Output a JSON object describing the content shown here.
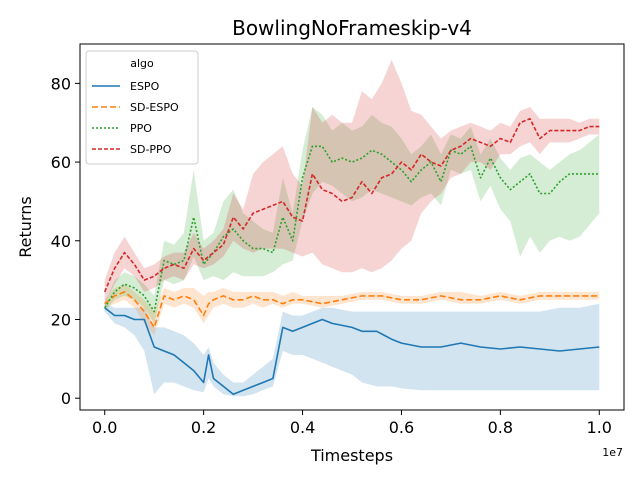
{
  "chart_data": {
    "type": "line",
    "title": "BowlingNoFrameskip-v4",
    "xlabel": "Timesteps",
    "ylabel": "Returns",
    "x_offset_label": "1e7",
    "xlim": [
      -0.05,
      1.05
    ],
    "ylim": [
      -3,
      90
    ],
    "xticks": [
      0.0,
      0.2,
      0.4,
      0.6,
      0.8,
      1.0
    ],
    "xtick_labels": [
      "0.0",
      "0.2",
      "0.4",
      "0.6",
      "0.8",
      "1.0"
    ],
    "yticks": [
      0,
      20,
      40,
      60,
      80
    ],
    "ytick_labels": [
      "0",
      "20",
      "40",
      "60",
      "80"
    ],
    "legend": {
      "title": "algo",
      "position": "top-left"
    },
    "series": [
      {
        "name": "ESPO",
        "color": "#1f77b4",
        "dash": "solid",
        "x": [
          0.0,
          0.02,
          0.04,
          0.06,
          0.08,
          0.1,
          0.12,
          0.14,
          0.16,
          0.18,
          0.2,
          0.21,
          0.22,
          0.24,
          0.26,
          0.28,
          0.3,
          0.32,
          0.34,
          0.36,
          0.38,
          0.4,
          0.42,
          0.44,
          0.46,
          0.5,
          0.52,
          0.55,
          0.58,
          0.6,
          0.64,
          0.68,
          0.72,
          0.76,
          0.8,
          0.84,
          0.88,
          0.92,
          0.96,
          1.0
        ],
        "y": [
          23,
          21,
          21,
          20,
          20,
          13,
          12,
          11,
          9,
          7,
          4,
          11,
          5,
          3,
          1,
          2,
          3,
          4,
          5,
          18,
          17,
          18,
          19,
          20,
          19,
          18,
          17,
          17,
          15,
          14,
          13,
          13,
          14,
          13,
          12.5,
          13,
          12.5,
          12,
          12.5,
          13
        ],
        "lower": [
          22,
          19,
          18,
          16,
          12,
          1,
          4,
          4,
          3,
          2,
          1.5,
          5,
          3,
          1,
          0.5,
          0.5,
          1,
          2,
          3,
          12,
          11,
          11,
          10,
          9,
          8,
          6,
          4,
          3,
          3,
          2.5,
          2,
          2,
          2,
          2,
          2,
          2,
          2,
          2,
          2,
          2
        ],
        "upper": [
          24,
          23,
          23,
          23,
          23,
          18,
          18,
          17,
          16,
          14,
          11,
          13,
          9,
          6,
          4,
          4,
          6,
          8,
          10,
          22,
          21,
          21,
          22,
          23,
          23,
          22,
          22,
          22,
          22,
          22,
          22,
          22,
          22,
          22,
          22,
          22,
          22,
          23,
          23,
          24
        ]
      },
      {
        "name": "SD-ESPO",
        "color": "#ff7f0e",
        "dash": "6,3",
        "x": [
          0.0,
          0.02,
          0.04,
          0.06,
          0.08,
          0.1,
          0.12,
          0.14,
          0.16,
          0.18,
          0.2,
          0.21,
          0.22,
          0.24,
          0.26,
          0.28,
          0.3,
          0.32,
          0.34,
          0.36,
          0.38,
          0.4,
          0.44,
          0.48,
          0.52,
          0.56,
          0.6,
          0.64,
          0.68,
          0.72,
          0.76,
          0.8,
          0.84,
          0.88,
          0.92,
          0.96,
          1.0
        ],
        "y": [
          24,
          26,
          27,
          25,
          22,
          18,
          26,
          25,
          26,
          25,
          21,
          24,
          25,
          26,
          25,
          25,
          26,
          25,
          25,
          24,
          25,
          25,
          24,
          25,
          26,
          26,
          25,
          25,
          26,
          25,
          25,
          26,
          25,
          26,
          26,
          26,
          26
        ],
        "lower": [
          23,
          24,
          25,
          23,
          19,
          16,
          24,
          23,
          24,
          23,
          19,
          21,
          23,
          24,
          23,
          23,
          24,
          23,
          24,
          23,
          24,
          24,
          23,
          24,
          25,
          25,
          24,
          24,
          25,
          24,
          24,
          25,
          24,
          25,
          25,
          25,
          25
        ],
        "upper": [
          25,
          28,
          29,
          27,
          25,
          22,
          28,
          27,
          28,
          28,
          26,
          27,
          27,
          28,
          27,
          27,
          27,
          27,
          27,
          26,
          27,
          26,
          26,
          26,
          27,
          27,
          26,
          26,
          27,
          27,
          26,
          27,
          26,
          27,
          27,
          27,
          27
        ]
      },
      {
        "name": "PPO",
        "color": "#2ca02c",
        "dash": "2,2",
        "x": [
          0.0,
          0.02,
          0.04,
          0.06,
          0.08,
          0.1,
          0.12,
          0.14,
          0.16,
          0.18,
          0.2,
          0.22,
          0.24,
          0.26,
          0.28,
          0.3,
          0.32,
          0.34,
          0.36,
          0.38,
          0.4,
          0.42,
          0.44,
          0.46,
          0.48,
          0.5,
          0.52,
          0.54,
          0.56,
          0.58,
          0.6,
          0.62,
          0.64,
          0.66,
          0.68,
          0.7,
          0.72,
          0.74,
          0.76,
          0.78,
          0.8,
          0.82,
          0.84,
          0.86,
          0.88,
          0.9,
          0.92,
          0.94,
          0.96,
          0.98,
          1.0
        ],
        "y": [
          23,
          27,
          29,
          28,
          26,
          22,
          35,
          34,
          35,
          46,
          34,
          37,
          41,
          43,
          40,
          38,
          38,
          37,
          46,
          40,
          56,
          64,
          64,
          60,
          61,
          60,
          61,
          63,
          62,
          60,
          58,
          55,
          58,
          60,
          55,
          63,
          62,
          64,
          56,
          61,
          56,
          53,
          55,
          57,
          52,
          52,
          55,
          57,
          57,
          57,
          57
        ],
        "lower": [
          22,
          25,
          26,
          25,
          23,
          19,
          30,
          29,
          30,
          36,
          30,
          31,
          30,
          32,
          31,
          31,
          31,
          32,
          34,
          35,
          45,
          52,
          55,
          54,
          52,
          50,
          51,
          53,
          52,
          51,
          50,
          49,
          51,
          52,
          49,
          58,
          57,
          58,
          50,
          54,
          48,
          45,
          36,
          41,
          37,
          40,
          41,
          40,
          41,
          44,
          47
        ],
        "upper": [
          24,
          30,
          32,
          31,
          29,
          26,
          40,
          39,
          42,
          58,
          40,
          42,
          50,
          53,
          47,
          45,
          43,
          42,
          56,
          47,
          63,
          74,
          72,
          68,
          70,
          68,
          69,
          72,
          70,
          69,
          66,
          62,
          64,
          67,
          62,
          67,
          66,
          69,
          62,
          66,
          61,
          58,
          61,
          62,
          60,
          58,
          60,
          62,
          63,
          65,
          67
        ]
      },
      {
        "name": "SD-PPO",
        "color": "#d62728",
        "dash": "4,2",
        "x": [
          0.0,
          0.02,
          0.04,
          0.06,
          0.08,
          0.1,
          0.12,
          0.14,
          0.16,
          0.18,
          0.2,
          0.22,
          0.24,
          0.26,
          0.28,
          0.3,
          0.32,
          0.34,
          0.36,
          0.38,
          0.4,
          0.42,
          0.44,
          0.46,
          0.48,
          0.5,
          0.52,
          0.54,
          0.56,
          0.58,
          0.6,
          0.62,
          0.64,
          0.66,
          0.68,
          0.7,
          0.72,
          0.74,
          0.76,
          0.78,
          0.8,
          0.82,
          0.84,
          0.86,
          0.88,
          0.9,
          0.92,
          0.94,
          0.96,
          0.98,
          1.0
        ],
        "y": [
          27,
          33,
          37,
          34,
          30,
          31,
          33,
          34,
          33,
          38,
          35,
          37,
          39,
          46,
          43,
          47,
          48,
          49,
          50,
          46,
          45,
          57,
          53,
          52,
          50,
          51,
          55,
          52,
          56,
          57,
          60,
          58,
          62,
          60,
          59,
          63,
          64,
          66,
          65,
          64,
          66,
          65,
          70,
          71,
          66,
          68,
          68,
          68,
          68,
          69,
          69
        ],
        "lower": [
          24,
          29,
          33,
          31,
          27,
          28,
          30,
          31,
          30,
          34,
          33,
          34,
          36,
          40,
          38,
          37,
          38,
          38,
          38,
          37,
          36,
          37,
          34,
          33,
          32,
          32,
          33,
          32,
          33,
          35,
          38,
          40,
          47,
          50,
          52,
          56,
          57,
          60,
          60,
          58,
          62,
          62,
          64,
          65,
          62,
          65,
          65,
          65,
          66,
          67,
          67
        ],
        "upper": [
          30,
          37,
          41,
          37,
          33,
          34,
          36,
          37,
          37,
          42,
          38,
          40,
          43,
          52,
          48,
          57,
          60,
          62,
          64,
          57,
          54,
          74,
          70,
          72,
          70,
          70,
          78,
          76,
          80,
          86,
          80,
          73,
          72,
          69,
          66,
          68,
          69,
          70,
          69,
          68,
          70,
          69,
          73,
          74,
          71,
          71,
          71,
          71,
          70,
          71,
          71
        ]
      }
    ]
  }
}
